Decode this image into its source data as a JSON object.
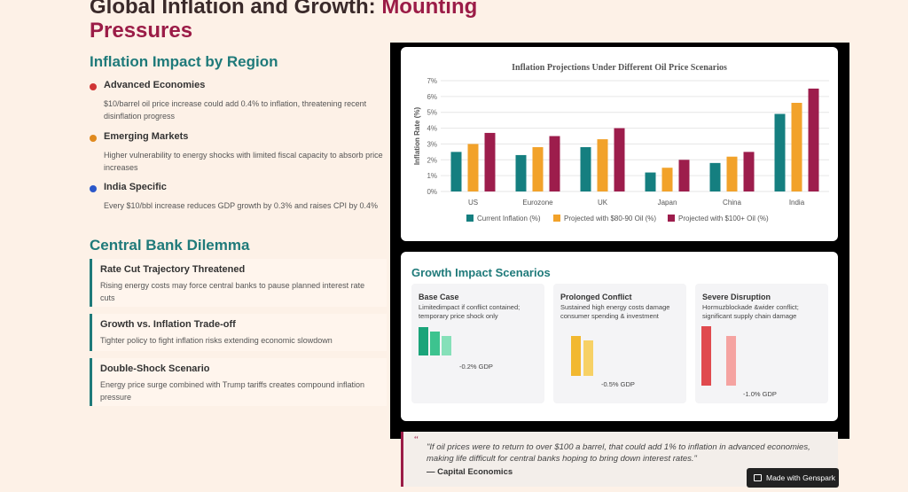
{
  "title": {
    "main": "Global Inflation and Growth:",
    "accent": "Mounting Pressures"
  },
  "inflation_section": {
    "heading": "Inflation Impact by Region",
    "items": [
      {
        "title": "Advanced Economies",
        "desc": "$10/barrel oil price increase could add 0.4% to inflation, threatening recent disinflation progress",
        "dot_color": "#d03535"
      },
      {
        "title": "Emerging Markets",
        "desc": "Higher vulnerability to energy shocks with limited fiscal capacity to absorb price increases",
        "dot_color": "#e08a1e"
      },
      {
        "title": "India Specific",
        "desc": "Every $10/bbl increase reduces GDP growth by 0.3% and raises CPI by 0.4%",
        "dot_color": "#2b57c9"
      }
    ]
  },
  "dilemma_section": {
    "heading": "Central Bank Dilemma",
    "items": [
      {
        "title": "Rate Cut Trajectory Threatened",
        "desc": "Rising energy costs may force central banks to pause planned interest rate cuts"
      },
      {
        "title": "Growth vs. Inflation Trade-off",
        "desc": "Tighter policy to fight inflation risks extending economic slowdown"
      },
      {
        "title": "Double-Shock Scenario",
        "desc": "Energy price surge combined with Trump tariffs creates compound inflation pressure"
      }
    ]
  },
  "chart_data": {
    "type": "bar",
    "title": "Inflation Projections Under Different Oil Price Scenarios",
    "xlabel": "",
    "ylabel": "Inflation Rate (%)",
    "ylim": [
      0,
      7
    ],
    "yticks": [
      "0%",
      "1%",
      "2%",
      "3%",
      "4%",
      "5%",
      "6%",
      "7%"
    ],
    "grid": true,
    "legend_position": "bottom",
    "categories": [
      "US",
      "Eurozone",
      "UK",
      "Japan",
      "China",
      "India"
    ],
    "series": [
      {
        "name": "Current Inflation (%)",
        "color": "#157f80",
        "values": [
          2.5,
          2.3,
          2.8,
          1.2,
          1.8,
          4.9
        ]
      },
      {
        "name": "Projected with $80-90 Oil (%)",
        "color": "#f2a22a",
        "values": [
          3.0,
          2.8,
          3.3,
          1.5,
          2.2,
          5.6
        ]
      },
      {
        "name": "Projected with $100+ Oil (%)",
        "color": "#9d1d4c",
        "values": [
          3.7,
          3.5,
          4.0,
          2.0,
          2.5,
          6.5
        ]
      }
    ]
  },
  "growth_section": {
    "heading": "Growth Impact Scenarios",
    "scenarios": [
      {
        "title": "Base Case",
        "desc": "Limitedimpact if conflict contained; temporary price shock only",
        "gdp": "-0.2% GDP",
        "bar_colors": [
          "#1aa47a",
          "#3dc38f",
          "#86e0b9"
        ]
      },
      {
        "title": "Prolonged Conflict",
        "desc": "Sustained high energy costs damage consumer spending & investment",
        "gdp": "-0.5% GDP",
        "bar_colors": [
          "#f2b830",
          "#f7d165"
        ]
      },
      {
        "title": "Severe Disruption",
        "desc": "Hormuzblockade &wider conflict; significant supply chain damage",
        "gdp": "-1.0% GDP",
        "bar_colors": [
          "#e04a4e",
          "#f5a3a1"
        ]
      }
    ]
  },
  "quote": {
    "mark": "“",
    "text": "\"If oil prices were to return to over $100 a barrel, that could add 1% to inflation in advanced economies, making life difficult for central banks hoping to bring down interest rates.\"",
    "source": "— Capital Economics"
  },
  "badge": {
    "label": "Made with Genspark",
    "icon": "genspark-icon"
  }
}
